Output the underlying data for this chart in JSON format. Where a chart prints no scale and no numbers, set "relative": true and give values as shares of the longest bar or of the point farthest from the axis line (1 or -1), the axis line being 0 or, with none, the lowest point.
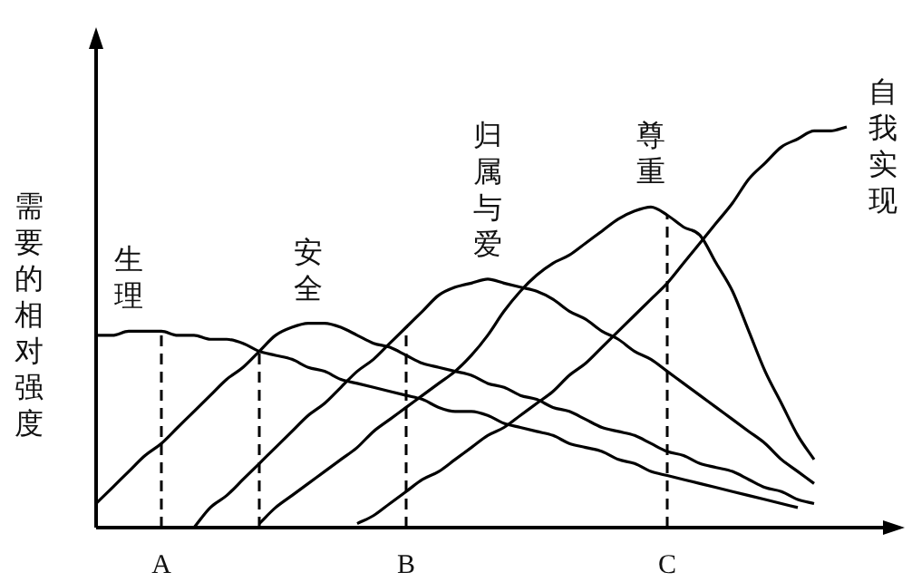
{
  "chart_data": {
    "type": "line",
    "relative": true,
    "ylabel": "需要的相对强度",
    "categories": [
      null,
      null,
      null,
      null,
      "A",
      null,
      null,
      null,
      null,
      null,
      null,
      null,
      null,
      null,
      null,
      null,
      null,
      null,
      null,
      "B",
      null,
      null,
      null,
      null,
      null,
      null,
      null,
      null,
      null,
      null,
      null,
      null,
      null,
      null,
      null,
      "C",
      null,
      null,
      null,
      null,
      null,
      null,
      null,
      null,
      null,
      null,
      null,
      null,
      null,
      null
    ],
    "tick_labels": "x",
    "line_style": "solid",
    "marker": "none",
    "ref_lines": [
      {
        "axis": "x",
        "value": "A",
        "line_style": "dashed",
        "color": "#000000"
      },
      {
        "axis": "x",
        "value": "B",
        "line_style": "dashed",
        "color": "#000000"
      },
      {
        "axis": "x",
        "value": "C",
        "line_style": "dashed",
        "color": "#000000"
      }
    ],
    "series": [
      {
        "name": "生理",
        "color": "#000000",
        "values": [
          0.48,
          0.48,
          0.49,
          0.49,
          0.49,
          0.48,
          0.48,
          0.47,
          0.47,
          0.46,
          0.44,
          0.43,
          0.42,
          0.4,
          0.39,
          0.37,
          0.36,
          0.35,
          0.34,
          0.33,
          0.32,
          0.3,
          0.29,
          0.29,
          0.28,
          0.26,
          0.25,
          0.24,
          0.23,
          0.21,
          0.2,
          0.19,
          0.17,
          0.16,
          0.14,
          0.13,
          0.12,
          0.11,
          0.1,
          0.09,
          0.08,
          0.07,
          0.06,
          0.05,
          null,
          null,
          null,
          null,
          null,
          null
        ]
      },
      {
        "name": "安全",
        "color": "#000000",
        "values": [
          0.06,
          0.1,
          0.14,
          0.18,
          0.21,
          0.25,
          0.29,
          0.33,
          0.37,
          0.4,
          0.44,
          0.48,
          0.5,
          0.51,
          0.51,
          0.5,
          0.48,
          0.46,
          0.45,
          0.43,
          0.41,
          0.4,
          0.39,
          0.38,
          0.36,
          0.35,
          0.33,
          0.32,
          0.3,
          0.29,
          0.27,
          0.25,
          0.24,
          0.23,
          0.21,
          0.19,
          0.18,
          0.16,
          0.15,
          0.14,
          0.12,
          0.1,
          0.09,
          0.07,
          0.06,
          null,
          null,
          null,
          null,
          null
        ]
      },
      {
        "name": "归属与爱",
        "color": "#000000",
        "values": [
          null,
          null,
          null,
          null,
          null,
          null,
          0.0,
          0.05,
          0.08,
          0.12,
          0.16,
          0.2,
          0.24,
          0.28,
          0.31,
          0.35,
          0.39,
          0.42,
          0.46,
          0.5,
          0.54,
          0.58,
          0.6,
          0.61,
          0.62,
          0.61,
          0.6,
          0.59,
          0.57,
          0.54,
          0.52,
          0.49,
          0.47,
          0.44,
          0.42,
          0.39,
          0.36,
          0.33,
          0.3,
          0.27,
          0.24,
          0.21,
          0.17,
          0.14,
          0.11,
          null,
          null,
          null,
          null,
          null
        ]
      },
      {
        "name": "尊重",
        "color": "#000000",
        "values": [
          null,
          null,
          null,
          null,
          null,
          null,
          null,
          null,
          null,
          null,
          0.01,
          0.05,
          0.08,
          0.11,
          0.14,
          0.17,
          0.2,
          0.24,
          0.27,
          0.3,
          0.33,
          0.36,
          0.39,
          0.43,
          0.48,
          0.54,
          0.59,
          0.63,
          0.66,
          0.68,
          0.71,
          0.74,
          0.77,
          0.79,
          0.8,
          0.78,
          0.75,
          0.73,
          0.66,
          0.59,
          0.49,
          0.39,
          0.31,
          0.23,
          0.17,
          null,
          null,
          null,
          null,
          null
        ]
      },
      {
        "name": "自我实现",
        "color": "#000000",
        "values": [
          null,
          null,
          null,
          null,
          null,
          null,
          null,
          null,
          null,
          null,
          null,
          null,
          null,
          null,
          null,
          null,
          0.01,
          0.03,
          0.06,
          0.09,
          0.12,
          0.14,
          0.17,
          0.2,
          0.23,
          0.25,
          0.28,
          0.31,
          0.34,
          0.38,
          0.41,
          0.45,
          0.49,
          0.53,
          0.57,
          0.61,
          0.66,
          0.71,
          0.76,
          0.81,
          0.87,
          0.91,
          0.95,
          0.97,
          0.99,
          0.99,
          1,
          null,
          null,
          null
        ]
      }
    ]
  }
}
